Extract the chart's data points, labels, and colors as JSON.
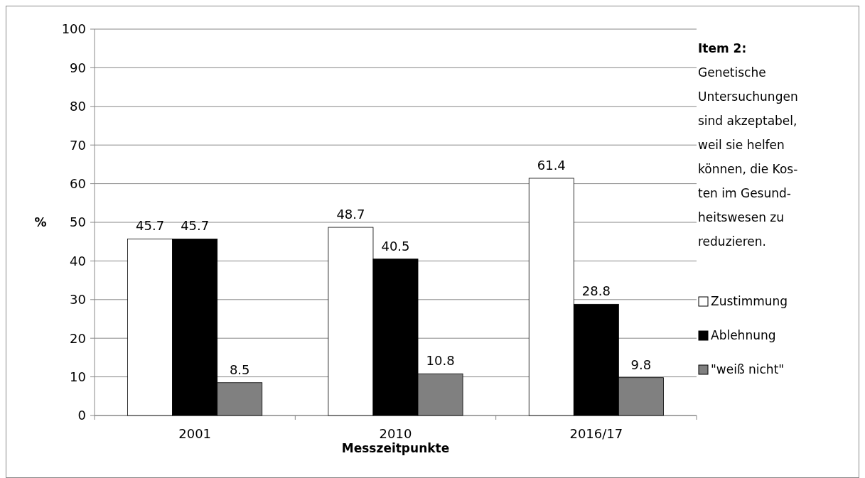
{
  "chart_data": {
    "type": "bar",
    "title": "Item 2:",
    "subtitle": "Genetische\nUntersuchungen\nsind akzeptabel,\nweil sie helfen\nkönnen, die Kos-\nten im Gesund-\nheitswesen zu\nreduzieren.",
    "xlabel": "Messzeitpunkte",
    "ylabel": "%",
    "categories": [
      "2001",
      "2010",
      "2016/17"
    ],
    "series": [
      {
        "name": "Zustimmung",
        "color": "#ffffff",
        "values": [
          45.7,
          48.7,
          61.4
        ]
      },
      {
        "name": "Ablehnung",
        "color": "#000000",
        "values": [
          45.7,
          40.5,
          28.8
        ]
      },
      {
        "name": "\"weiß nicht\"",
        "color": "#808080",
        "values": [
          8.5,
          10.8,
          9.8
        ]
      }
    ],
    "ylim": [
      0,
      100
    ],
    "yticks": [
      0,
      10,
      20,
      30,
      40,
      50,
      60,
      70,
      80,
      90,
      100
    ],
    "grid": "y",
    "legend": "right",
    "data_labels": true
  }
}
